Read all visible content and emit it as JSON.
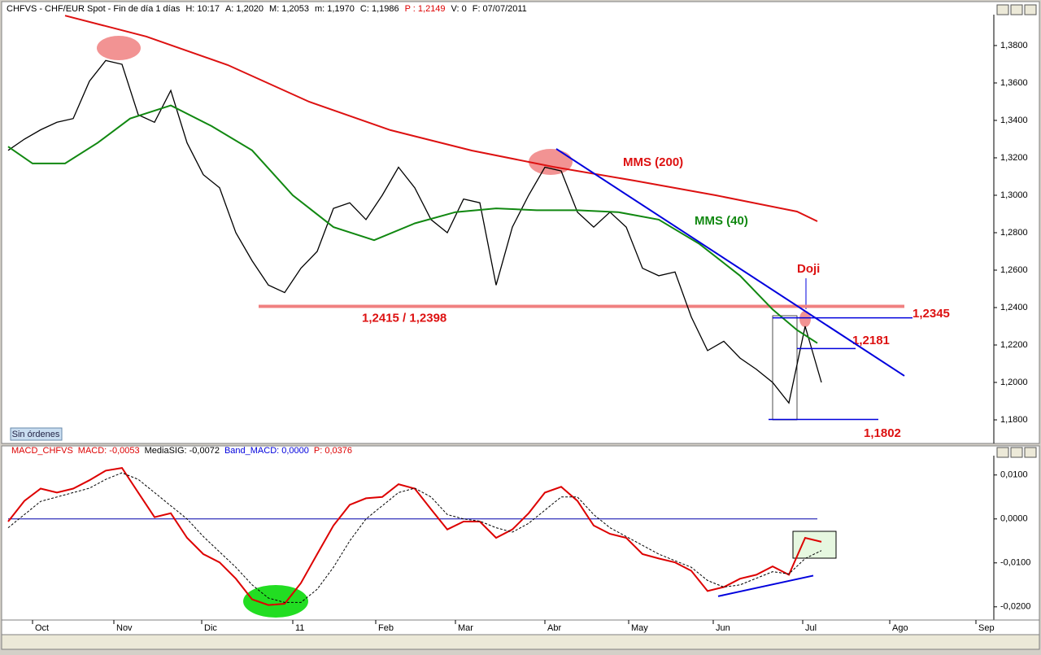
{
  "header": {
    "parts": [
      {
        "text": "CHFVS - CHF/EUR Spot - Fin de día 1 días",
        "color": "#000000"
      },
      {
        "text": "H: 10:17",
        "color": "#000000"
      },
      {
        "text": "A: 1,2020",
        "color": "#000000"
      },
      {
        "text": "M: 1,2053",
        "color": "#000000"
      },
      {
        "text": "m: 1,1970",
        "color": "#000000"
      },
      {
        "text": "C: 1,1986",
        "color": "#000000"
      },
      {
        "text": "P : 1,2149",
        "color": "#dd0000"
      },
      {
        "text": "V: 0",
        "color": "#000000"
      },
      {
        "text": "F: 07/07/2011",
        "color": "#000000"
      }
    ]
  },
  "status_button": "Sin órdenes",
  "chart_data": [
    {
      "type": "line",
      "xlim": [
        -0.25,
        60.6
      ],
      "ylim": [
        1.1674,
        1.3965
      ],
      "xticks": [
        {
          "value": 1.5,
          "label": "Oct"
        },
        {
          "value": 6.5,
          "label": "Nov"
        },
        {
          "value": 11.9,
          "label": "Dic"
        },
        {
          "value": 17.5,
          "label": "11"
        },
        {
          "value": 22.6,
          "label": "Feb"
        },
        {
          "value": 27.5,
          "label": "Mar"
        },
        {
          "value": 33,
          "label": "Abr"
        },
        {
          "value": 38.15,
          "label": "May"
        },
        {
          "value": 43.35,
          "label": "Jun"
        },
        {
          "value": 48.85,
          "label": "Jul"
        },
        {
          "value": 54.2,
          "label": "Ago"
        },
        {
          "value": 59.5,
          "label": "Sep"
        }
      ],
      "yticks": [
        {
          "value": 1.18,
          "label": "1,1800"
        },
        {
          "value": 1.2,
          "label": "1,2000"
        },
        {
          "value": 1.22,
          "label": "1,2200"
        },
        {
          "value": 1.24,
          "label": "1,2400"
        },
        {
          "value": 1.26,
          "label": "1,2600"
        },
        {
          "value": 1.28,
          "label": "1,2800"
        },
        {
          "value": 1.3,
          "label": "1,3000"
        },
        {
          "value": 1.32,
          "label": "1,3200"
        },
        {
          "value": 1.34,
          "label": "1,3400"
        },
        {
          "value": 1.36,
          "label": "1,3600"
        },
        {
          "value": 1.38,
          "label": "1,3800"
        }
      ],
      "series": [
        {
          "color": "#000000",
          "x": [
            0,
            1,
            2,
            3,
            4,
            5,
            6,
            7,
            8,
            9,
            10,
            11,
            12,
            13,
            14,
            15,
            16,
            17,
            18,
            19,
            20,
            21,
            22,
            23,
            24,
            25,
            26,
            27,
            28,
            29,
            30,
            31,
            32,
            33,
            34,
            35,
            36,
            37,
            38,
            39,
            40,
            41,
            42,
            43,
            44,
            45,
            46,
            47,
            48,
            49,
            50
          ],
          "values": [
            1.324,
            1.33,
            1.335,
            1.339,
            1.341,
            1.361,
            1.372,
            1.37,
            1.343,
            1.339,
            1.356,
            1.328,
            1.311,
            1.304,
            1.28,
            1.265,
            1.252,
            1.248,
            1.261,
            1.27,
            1.293,
            1.296,
            1.287,
            1.3,
            1.315,
            1.304,
            1.287,
            1.28,
            1.298,
            1.296,
            1.252,
            1.283,
            1.3,
            1.315,
            1.313,
            1.291,
            1.283,
            1.291,
            1.283,
            1.261,
            1.257,
            1.259,
            1.235,
            1.217,
            1.222,
            1.213,
            1.207,
            1.2,
            1.189,
            1.23,
            1.2
          ]
        },
        {
          "name": "MMS (200)",
          "color": "#dd1111",
          "x": [
            3.5,
            8.5,
            13.5,
            18.5,
            23.5,
            28.5,
            33.5,
            38.5,
            43.5,
            48.5,
            49.75
          ],
          "values": [
            1.396,
            1.3848,
            1.3696,
            1.35,
            1.3348,
            1.3239,
            1.3152,
            1.3078,
            1.3,
            1.2913,
            1.2861
          ]
        },
        {
          "name": "MMS (40)",
          "color": "#118811",
          "x": [
            0,
            1.5,
            3.5,
            5.5,
            7.5,
            10,
            12.5,
            15,
            17.5,
            20,
            22.5,
            25,
            27.5,
            30,
            32.5,
            35,
            37.5,
            40,
            42.5,
            45,
            47,
            48.5,
            49.75
          ],
          "values": [
            1.326,
            1.317,
            1.317,
            1.328,
            1.341,
            1.348,
            1.337,
            1.324,
            1.3,
            1.283,
            1.276,
            1.285,
            1.291,
            1.293,
            1.292,
            1.292,
            1.291,
            1.287,
            1.274,
            1.257,
            1.239,
            1.228,
            1.221
          ]
        }
      ],
      "support_zone": {
        "high": 1.2415,
        "low": 1.2398,
        "x": [
          15.4,
          55.1
        ],
        "label": "1,2415 / 1,2398",
        "color": "#f08080"
      },
      "levels": [
        {
          "value": 1.2345,
          "label": "1,2345",
          "x": [
            47,
            55.6
          ],
          "color": "#0000dd"
        },
        {
          "value": 1.2181,
          "label": "1,2181",
          "x": [
            48.5,
            52.1
          ],
          "color": "#0000dd"
        },
        {
          "value": 1.1802,
          "label": "1,1802",
          "x": [
            46.75,
            53.5
          ],
          "color": "#0000dd"
        }
      ],
      "trendline": {
        "x": [
          33.7,
          55.1
        ],
        "values": [
          1.3248,
          1.2035
        ],
        "color": "#0000dd"
      },
      "annotation": "Doji"
    },
    {
      "type": "line",
      "xlim": [
        -0.25,
        60.6
      ],
      "ylim": [
        -0.023,
        0.0144
      ],
      "yticks": [
        {
          "value": -0.02,
          "label": "-0,0200"
        },
        {
          "value": -0.01,
          "label": "-0,0100"
        },
        {
          "value": 0,
          "label": "0,0000"
        },
        {
          "value": 0.01,
          "label": "0,0100"
        }
      ],
      "header": [
        {
          "text": "MACD_CHFVS",
          "color": "#dd0000"
        },
        {
          "text": "MACD: -0,0053",
          "color": "#dd0000"
        },
        {
          "text": "MediaSIG: -0,0072",
          "color": "#000000"
        },
        {
          "text": "Band_MACD: 0,0000",
          "color": "#0000dd"
        },
        {
          "text": "P: 0,0376",
          "color": "#dd0000"
        }
      ],
      "series": [
        {
          "color": "#dd0000",
          "values": [
            -0.0006,
            0.0041,
            0.0069,
            0.006,
            0.0069,
            0.0088,
            0.011,
            0.0116,
            0.006,
            0.0004,
            0.0013,
            -0.0043,
            -0.008,
            -0.0099,
            -0.0136,
            -0.0183,
            -0.0196,
            -0.0193,
            -0.0146,
            -0.008,
            -0.0015,
            0.0032,
            0.0047,
            0.005,
            0.0079,
            0.0069,
            0.0022,
            -0.0024,
            -0.0006,
            -0.0006,
            -0.0043,
            -0.0024,
            0.0013,
            0.006,
            0.0073,
            0.0041,
            -0.0015,
            -0.0034,
            -0.0043,
            -0.008,
            -0.009,
            -0.0099,
            -0.0118,
            -0.0164,
            -0.0155,
            -0.0136,
            -0.0127,
            -0.0108,
            -0.0127,
            -0.0043,
            -0.0052
          ]
        },
        {
          "color": "#000000",
          "dashed": true,
          "values": [
            -0.002,
            0.001,
            0.004,
            0.005,
            0.006,
            0.007,
            0.009,
            0.0105,
            0.009,
            0.006,
            0.003,
            0,
            -0.004,
            -0.0075,
            -0.011,
            -0.015,
            -0.018,
            -0.019,
            -0.019,
            -0.016,
            -0.011,
            -0.005,
            0,
            0.003,
            0.006,
            0.007,
            0.005,
            0.001,
            0,
            -0.0005,
            -0.002,
            -0.003,
            -0.001,
            0.002,
            0.005,
            0.005,
            0.001,
            -0.002,
            -0.004,
            -0.006,
            -0.008,
            -0.0095,
            -0.011,
            -0.014,
            -0.0155,
            -0.015,
            -0.0135,
            -0.012,
            -0.0125,
            -0.009,
            -0.0072
          ]
        }
      ],
      "band": {
        "value": 0,
        "x": [
          0,
          49.75
        ],
        "color": "#0000aa"
      },
      "trendline": {
        "x": [
          43.65,
          49.5
        ],
        "values": [
          -0.0176,
          -0.0129
        ],
        "color": "#0000dd"
      }
    }
  ]
}
